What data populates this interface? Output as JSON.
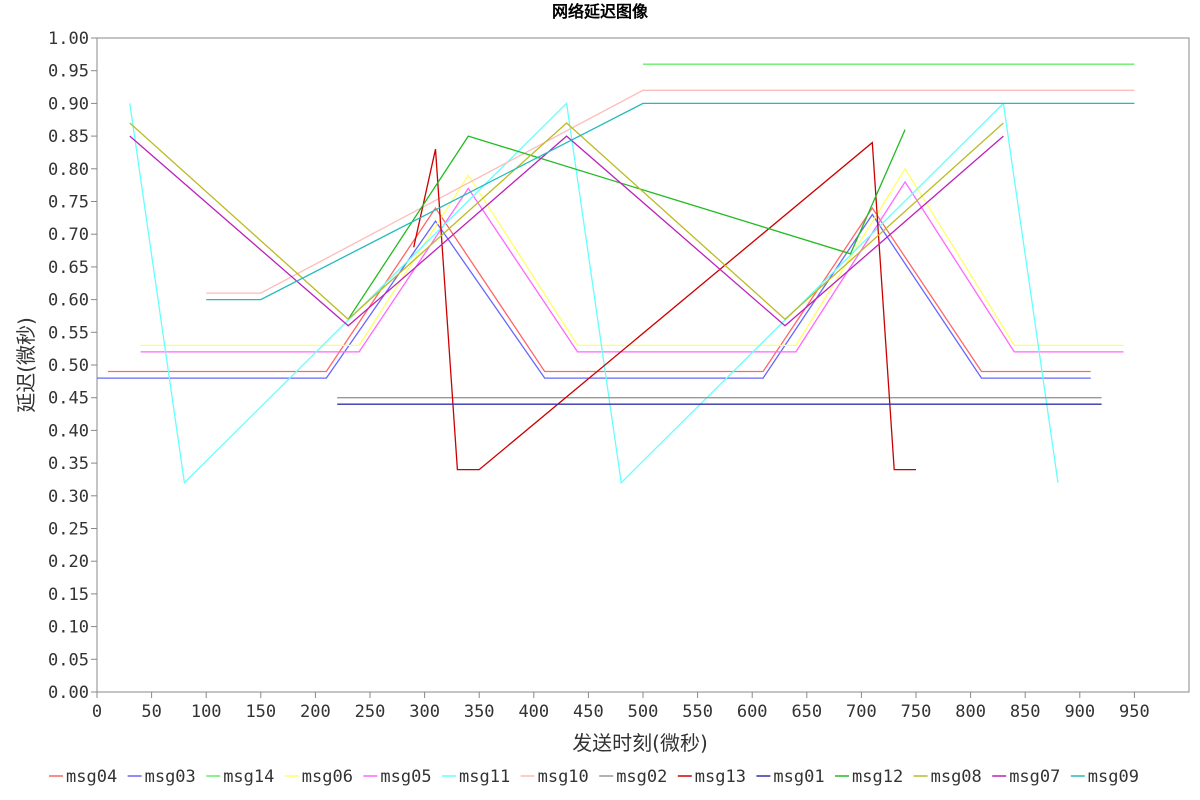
{
  "chart_data": {
    "type": "line",
    "title": "网络延迟图像",
    "xlabel": "发送时刻(微秒)",
    "ylabel": "延迟(微秒)",
    "xlim": [
      0,
      1000
    ],
    "ylim": [
      0,
      1.0
    ],
    "x_ticks": [
      "0",
      "50",
      "100",
      "150",
      "200",
      "250",
      "300",
      "350",
      "400",
      "450",
      "500",
      "550",
      "600",
      "650",
      "700",
      "750",
      "800",
      "850",
      "900",
      "950"
    ],
    "y_ticks": [
      "0.00",
      "0.05",
      "0.10",
      "0.15",
      "0.20",
      "0.25",
      "0.30",
      "0.35",
      "0.40",
      "0.45",
      "0.50",
      "0.55",
      "0.60",
      "0.65",
      "0.70",
      "0.75",
      "0.80",
      "0.85",
      "0.90",
      "0.95",
      "1.00"
    ],
    "grid": false,
    "legend_position": "bottom",
    "series": [
      {
        "name": "msg04",
        "color": "#ff6666",
        "x": [
          10,
          210,
          310,
          410,
          610,
          710,
          810,
          910
        ],
        "y": [
          0.49,
          0.49,
          0.74,
          0.49,
          0.49,
          0.74,
          0.49,
          0.49
        ]
      },
      {
        "name": "msg03",
        "color": "#6666ff",
        "x": [
          0,
          210,
          310,
          410,
          610,
          710,
          810,
          910
        ],
        "y": [
          0.48,
          0.48,
          0.72,
          0.48,
          0.48,
          0.73,
          0.48,
          0.48
        ]
      },
      {
        "name": "msg14",
        "color": "#66ee66",
        "x": [
          500,
          950
        ],
        "y": [
          0.96,
          0.96
        ]
      },
      {
        "name": "msg06",
        "color": "#ffff66",
        "x": [
          40,
          240,
          340,
          440,
          640,
          740,
          840,
          940
        ],
        "y": [
          0.53,
          0.53,
          0.79,
          0.53,
          0.53,
          0.8,
          0.53,
          0.53
        ]
      },
      {
        "name": "msg05",
        "color": "#ff66ff",
        "x": [
          40,
          240,
          340,
          440,
          640,
          740,
          840,
          940
        ],
        "y": [
          0.52,
          0.52,
          0.77,
          0.52,
          0.52,
          0.78,
          0.52,
          0.52
        ]
      },
      {
        "name": "msg11",
        "color": "#66ffff",
        "x": [
          30,
          80,
          430,
          480,
          830,
          880
        ],
        "y": [
          0.9,
          0.32,
          0.9,
          0.32,
          0.9,
          0.32
        ]
      },
      {
        "name": "msg10",
        "color": "#ffbbbb",
        "x": [
          100,
          150,
          500,
          950
        ],
        "y": [
          0.61,
          0.61,
          0.92,
          0.92
        ]
      },
      {
        "name": "msg02",
        "color": "#999999",
        "x": [
          220,
          920
        ],
        "y": [
          0.45,
          0.45
        ]
      },
      {
        "name": "msg13",
        "color": "#cc0000",
        "x": [
          290,
          310,
          330,
          350,
          710,
          730,
          750
        ],
        "y": [
          0.68,
          0.83,
          0.34,
          0.34,
          0.84,
          0.34,
          0.34
        ]
      },
      {
        "name": "msg01",
        "color": "#3333aa",
        "x": [
          220,
          920
        ],
        "y": [
          0.44,
          0.44
        ]
      },
      {
        "name": "msg12",
        "color": "#22bb22",
        "x": [
          230,
          340,
          690,
          740
        ],
        "y": [
          0.57,
          0.85,
          0.67,
          0.86
        ]
      },
      {
        "name": "msg08",
        "color": "#bbbb22",
        "x": [
          30,
          230,
          430,
          630,
          830
        ],
        "y": [
          0.87,
          0.57,
          0.87,
          0.57,
          0.87
        ]
      },
      {
        "name": "msg07",
        "color": "#bb22bb",
        "x": [
          30,
          230,
          430,
          630,
          830
        ],
        "y": [
          0.85,
          0.56,
          0.85,
          0.56,
          0.85
        ]
      },
      {
        "name": "msg09",
        "color": "#22bbbb",
        "x": [
          100,
          150,
          500,
          950
        ],
        "y": [
          0.6,
          0.6,
          0.9,
          0.9
        ]
      }
    ]
  }
}
